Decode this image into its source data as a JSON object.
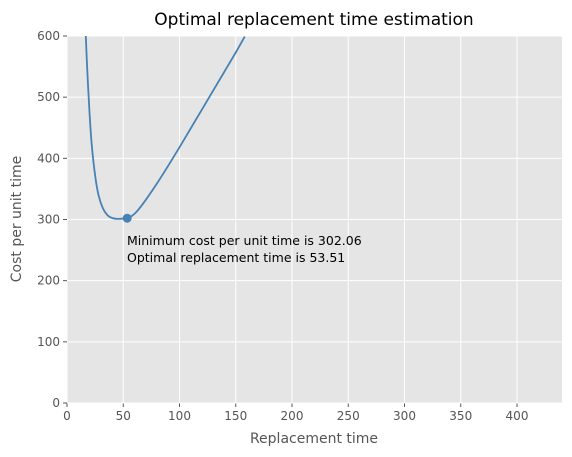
{
  "chart_data": {
    "type": "line",
    "title": "Optimal replacement time estimation",
    "xlabel": "Replacement time",
    "ylabel": "Cost per unit time",
    "xlim": [
      0,
      440
    ],
    "ylim": [
      0,
      600
    ],
    "x_ticks": [
      0,
      50,
      100,
      150,
      200,
      250,
      300,
      350,
      400
    ],
    "y_ticks": [
      0,
      100,
      200,
      300,
      400,
      500,
      600
    ],
    "grid": true,
    "line_color": "#4682b4",
    "background_color": "#e5e5e5",
    "grid_color": "#ffffff",
    "series": [
      {
        "x": [
          16.5,
          18,
          20,
          22,
          25,
          28,
          32,
          36,
          40,
          45,
          50,
          53.51,
          57,
          62,
          70,
          80,
          90,
          100,
          110,
          120,
          130,
          140,
          150,
          158
        ],
        "y": [
          610,
          545,
          475,
          422,
          372,
          340,
          318,
          307,
          302.5,
          301,
          301.5,
          302.06,
          305,
          313,
          332,
          359,
          388,
          418,
          449,
          480,
          511,
          542,
          573,
          599
        ]
      }
    ],
    "minimum_point": {
      "x": 53.51,
      "y": 302.06
    },
    "annotation_lines": [
      "Minimum cost per unit time is 302.06",
      "Optimal replacement time is 53.51"
    ]
  }
}
